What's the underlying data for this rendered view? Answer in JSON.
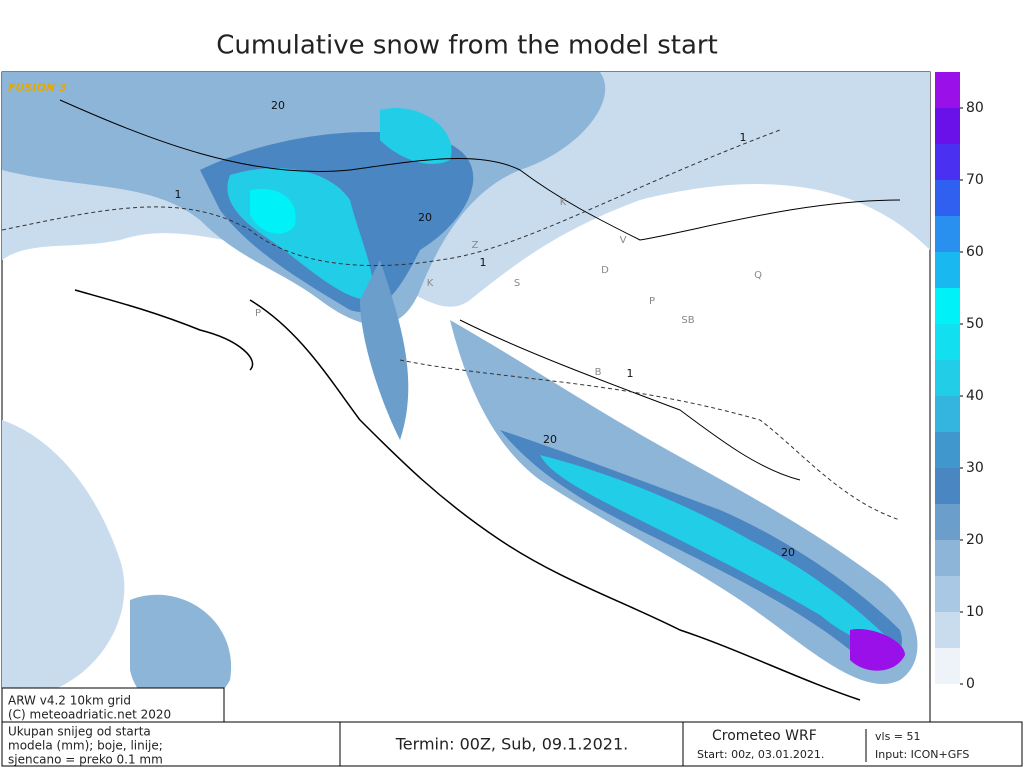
{
  "header": {
    "title": "Cumulative snow from the model start"
  },
  "map": {
    "brand": "FUSION 3",
    "labels": [
      "20",
      "20",
      "1",
      "1",
      "1",
      "1",
      "20",
      "20",
      "K",
      "D",
      "V",
      "Z",
      "S",
      "P",
      "SB",
      "B",
      "K",
      "P",
      "Q"
    ],
    "credit": [
      "ARW v4.2 10km grid",
      "(C) meteoadriatic.net 2020"
    ]
  },
  "colorbar": {
    "levels": [
      0,
      5,
      10,
      15,
      20,
      25,
      30,
      35,
      40,
      45,
      50,
      55,
      60,
      65,
      70,
      75,
      80,
      85
    ],
    "colors": [
      "#eef3f9",
      "#c9dcee",
      "#a9c8e3",
      "#8db5d8",
      "#6b9ecb",
      "#4a86c2",
      "#3f97cd",
      "#33b5df",
      "#22cde8",
      "#12e0f0",
      "#00f2f8",
      "#1ab8f0",
      "#2a90f0",
      "#3060f0",
      "#4a30f0",
      "#6a10e8",
      "#9a10e8"
    ],
    "ticks": [
      0,
      10,
      20,
      30,
      40,
      50,
      60,
      70,
      80
    ]
  },
  "footer": {
    "legend": [
      "Ukupan snijeg od starta",
      "modela (mm); boje, linije;",
      "sjencano = preko 0.1 mm"
    ],
    "termin": "Termin: 00Z, Sub, 09.1.2021.",
    "model": "Crometeo WRF",
    "vls": "vls = 51",
    "start": "Start: 00z, 03.01.2021.",
    "input": "Input: ICON+GFS"
  }
}
